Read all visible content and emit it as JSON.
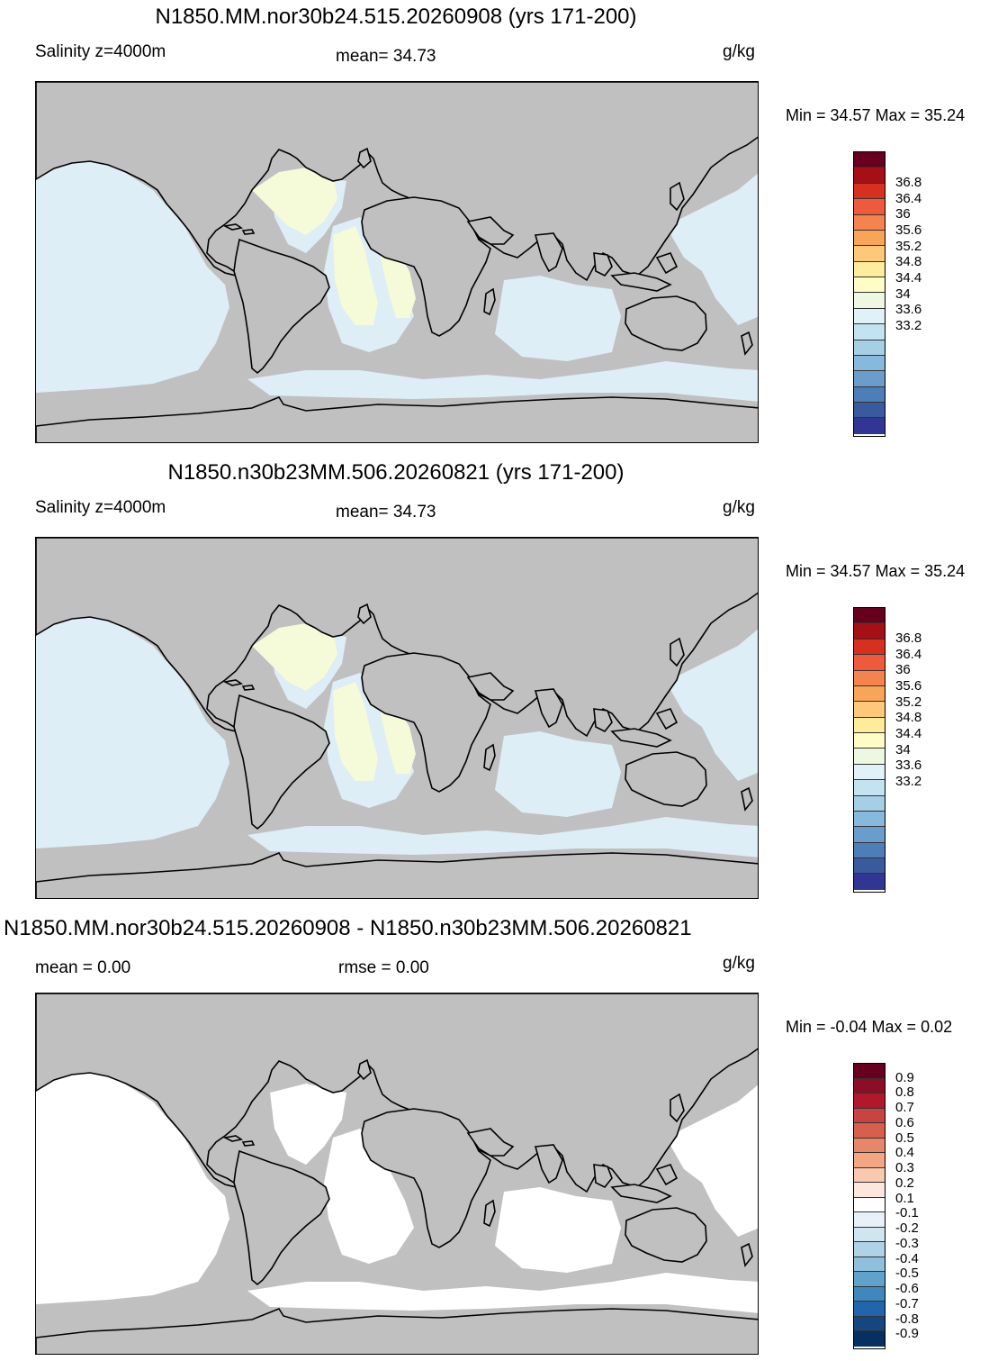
{
  "panels": [
    {
      "title": "N1850.MM.nor30b24.515.20260908 (yrs 171-200)",
      "left_label": "Salinity z=4000m",
      "center_label": "mean=  34.73",
      "units": "g/kg",
      "minmax": "Min =  34.57 Max =  35.24"
    },
    {
      "title": "N1850.n30b23MM.506.20260821 (yrs 171-200)",
      "left_label": "Salinity z=4000m",
      "center_label": "mean=  34.73",
      "units": "g/kg",
      "minmax": "Min =  34.57 Max =  35.24"
    },
    {
      "title": "N1850.MM.nor30b24.515.20260908 - N1850.n30b23MM.506.20260821",
      "left_label": "mean =   0.00",
      "center_label": "rmse =   0.00",
      "units": "g/kg",
      "minmax": "Min =  -0.04 Max =   0.02"
    }
  ],
  "colorbar_salinity": {
    "labels": [
      "36.8",
      "36.4",
      "36",
      "35.6",
      "35.2",
      "34.8",
      "34.4",
      "34",
      "33.6",
      "33.2"
    ],
    "colors": [
      "#67001f",
      "#a50f15",
      "#d7301f",
      "#ef5a3c",
      "#f4834d",
      "#f9a557",
      "#fdc878",
      "#feeb9c",
      "#fffcc6",
      "#eef7e1",
      "#e0f2f7",
      "#c3e3f0",
      "#a5cfe5",
      "#86b9db",
      "#6a9dcb",
      "#4e7eb8",
      "#3a5a9e",
      "#313695"
    ]
  },
  "colorbar_diff": {
    "labels": [
      "0.9",
      "0.8",
      "0.7",
      "0.6",
      "0.5",
      "0.4",
      "0.3",
      "0.2",
      "0.1",
      "-0.1",
      "-0.2",
      "-0.3",
      "-0.4",
      "-0.5",
      "-0.6",
      "-0.7",
      "-0.8",
      "-0.9"
    ],
    "colors": [
      "#67001f",
      "#8b0d26",
      "#b2182b",
      "#c94343",
      "#d6604d",
      "#e8866a",
      "#f4a582",
      "#f8c9b0",
      "#fde6dc",
      "#ffffff",
      "#e8f1f8",
      "#d1e5f0",
      "#afd2e7",
      "#8ec0dc",
      "#5fa2cc",
      "#3f87bc",
      "#2166ac",
      "#14477f",
      "#053061"
    ]
  },
  "map_colors": {
    "land": "#c0c0c0",
    "ocean_low": "#ddeef6",
    "ocean_high": "#f5fad8",
    "diff_ocean": "#ffffff"
  }
}
